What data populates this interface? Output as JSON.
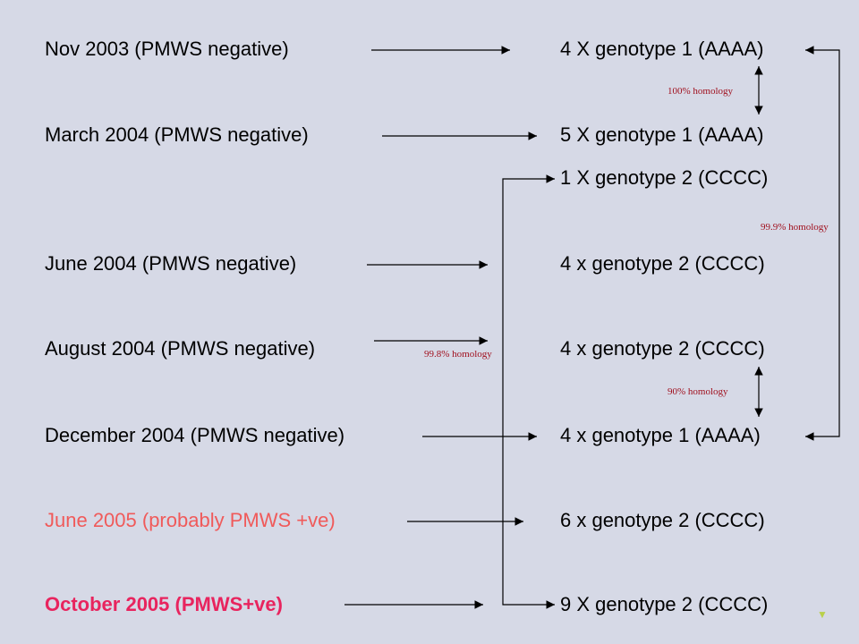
{
  "rows": [
    {
      "label": "Nov 2003 (PMWS negative)",
      "results": [
        "4 X genotype 1 (AAAA)"
      ],
      "label_color": "#000000"
    },
    {
      "label": "March 2004 (PMWS negative)",
      "results": [
        "5 X genotype 1 (AAAA)",
        "1 X genotype 2 (CCCC)"
      ],
      "label_color": "#000000"
    },
    {
      "label": "June 2004 (PMWS negative)",
      "results": [
        "4 x genotype 2 (CCCC)"
      ],
      "label_color": "#000000"
    },
    {
      "label": "August 2004 (PMWS negative)",
      "results": [
        "4 x genotype 2 (CCCC)"
      ],
      "label_color": "#000000"
    },
    {
      "label": "December 2004 (PMWS negative)",
      "results": [
        "4 x genotype 1 (AAAA)"
      ],
      "label_color": "#000000"
    },
    {
      "label": "June 2005 (probably PMWS +ve)",
      "results": [
        "6 x genotype 2 (CCCC)"
      ],
      "label_color": "#f05a5a"
    },
    {
      "label": "October 2005 (PMWS+ve)",
      "results": [
        "9 X genotype 2 (CCCC)"
      ],
      "label_color": "#e8245e"
    }
  ],
  "homology": {
    "nov_march": "100% homology",
    "nov_dec": "99.9% homology",
    "genotype2_chain": "99.8% homology",
    "aug_dec": "90% homology"
  },
  "colors": {
    "background": "#d6d9e6",
    "homology_text": "#a0101e",
    "corner_marker": "#b9d04a"
  },
  "corner_marker": "▼"
}
